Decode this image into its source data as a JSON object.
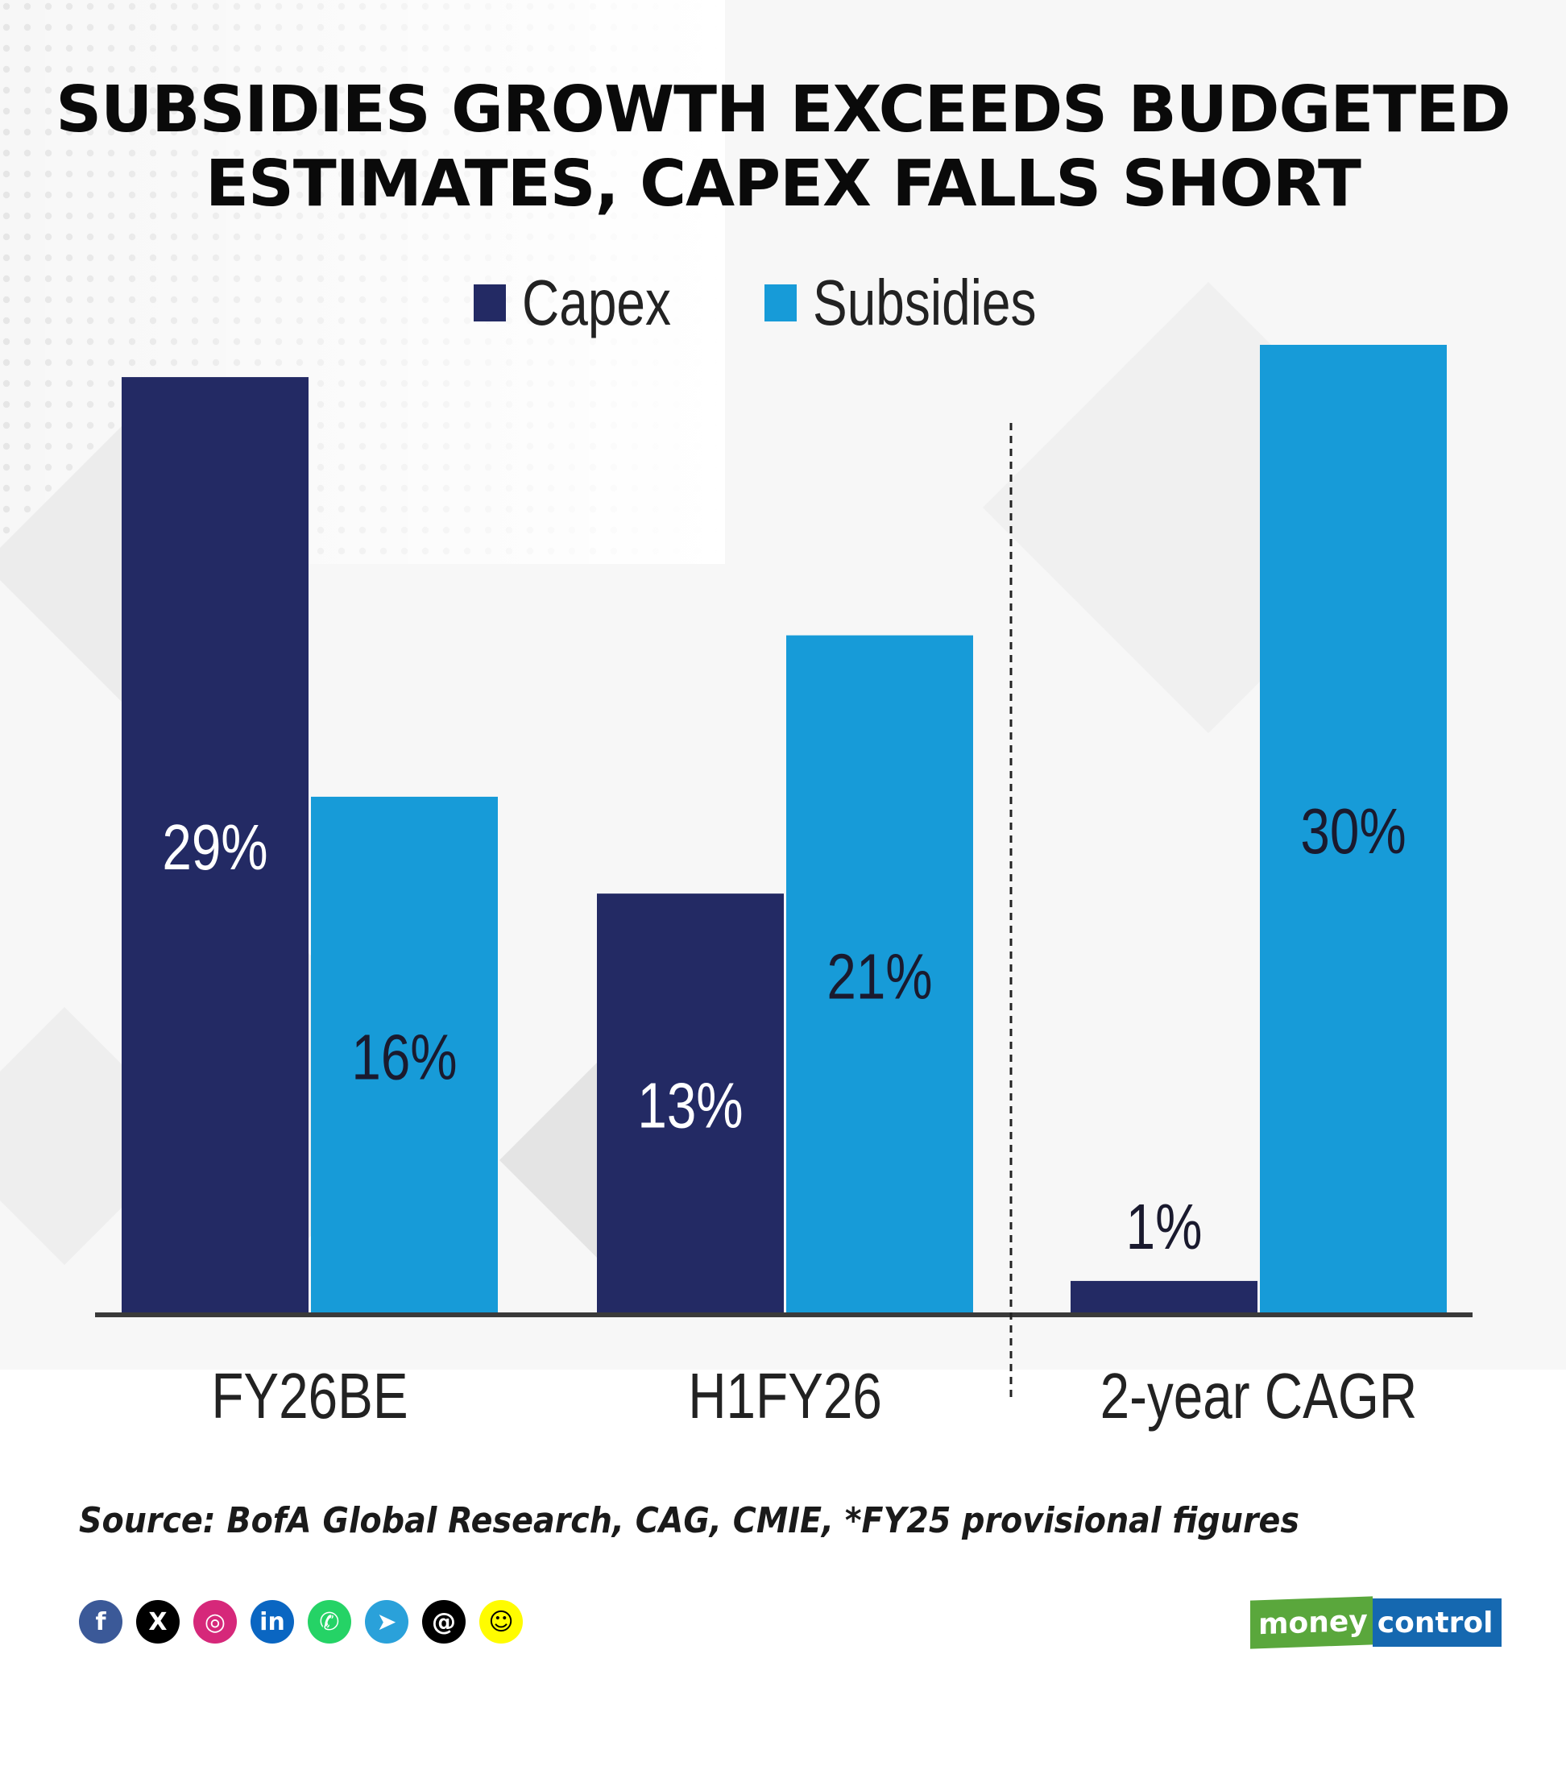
{
  "title_lines": [
    "SUBSIDIES GROWTH EXCEEDS BUDGETED",
    "ESTIMATES, CAPEX FALLS SHORT"
  ],
  "source": "Source: BofA Global Research, CAG, CMIE, *FY25 provisional figures",
  "colors": {
    "capex": "#232a64",
    "subsidies": "#179bd8",
    "axis": "#3a3a3a",
    "label_on_dark": "#ffffff",
    "label_on_light": "#1a1a2e"
  },
  "chart_data": {
    "type": "bar",
    "title": "SUBSIDIES GROWTH EXCEEDS BUDGETED ESTIMATES, CAPEX FALLS SHORT",
    "categories": [
      "FY26BE",
      "H1FY26",
      "2-year CAGR"
    ],
    "series": [
      {
        "name": "Capex",
        "values": [
          29,
          13,
          1
        ],
        "labels": [
          "29%",
          "13%",
          "1%"
        ]
      },
      {
        "name": "Subsidies",
        "values": [
          16,
          21,
          30
        ],
        "labels": [
          "16%",
          "21%",
          "30%"
        ]
      }
    ],
    "legend": "top-center",
    "grid": false,
    "value_axis_visible": false,
    "separator_before_category": "2-year CAGR"
  },
  "social_icons": [
    {
      "name": "facebook-icon",
      "glyph": "f",
      "color": "#3b5998"
    },
    {
      "name": "x-icon",
      "glyph": "X",
      "color": "#000000"
    },
    {
      "name": "instagram-icon",
      "glyph": "◎",
      "color": "#d6287a"
    },
    {
      "name": "linkedin-icon",
      "glyph": "in",
      "color": "#0a66c2"
    },
    {
      "name": "whatsapp-icon",
      "glyph": "✆",
      "color": "#25d366"
    },
    {
      "name": "telegram-icon",
      "glyph": "➤",
      "color": "#2aa1da"
    },
    {
      "name": "threads-icon",
      "glyph": "@",
      "color": "#000000"
    },
    {
      "name": "snapchat-icon",
      "glyph": "☺",
      "color": "#fffc00"
    }
  ],
  "logo": {
    "part1": "money",
    "part2": "control"
  }
}
